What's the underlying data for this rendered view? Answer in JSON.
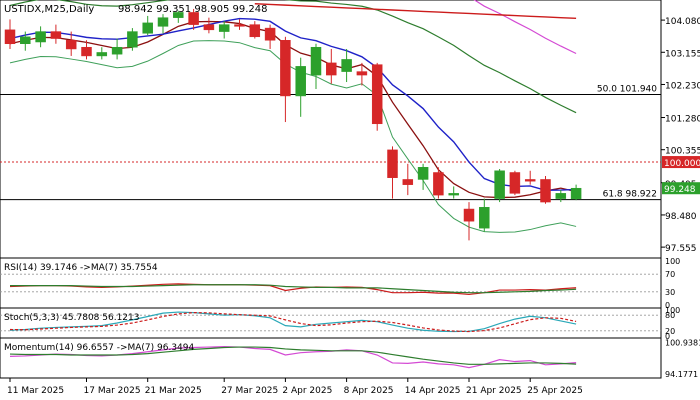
{
  "title": "USTIDX,M25,Daily",
  "ohlc_readout": "98.942 99.351 98.905 99.248",
  "colors": {
    "bull": "#2ca02c",
    "bear": "#d62728",
    "ma_blue": "#1f22c8",
    "ma_darkred": "#8b1010",
    "ma_green": "#2e7d2e",
    "ma_pink": "#d44ad4",
    "ma_red": "#cc1b1b",
    "bb_green": "#3fa05a",
    "price_label_bg": "#2ca02c",
    "resistance_label_bg": "#d62728"
  },
  "chart_data": [
    {
      "type": "candlestick",
      "title": "USTIDX,M25,Daily",
      "ylim": [
        97.3,
        104.6
      ],
      "x_tick_labels": [
        "11 Mar 2025",
        "17 Mar 2025",
        "21 Mar 2025",
        "27 Mar 2025",
        "2 Apr 2025",
        "8 Apr 2025",
        "14 Apr 2025",
        "21 Apr 2025",
        "25 Apr 2025"
      ],
      "x_tick_candle_index": [
        0,
        5,
        9,
        14,
        18,
        22,
        26,
        30,
        34
      ],
      "y_tick_labels": [
        "104.080",
        "103.155",
        "102.230",
        "101.280",
        "100.355",
        "99.405",
        "98.480",
        "97.555"
      ],
      "y_tick_values": [
        104.08,
        103.155,
        102.23,
        101.28,
        100.355,
        99.405,
        98.48,
        97.555
      ],
      "levels": [
        {
          "label": "50.0 101.940",
          "value": 101.94,
          "style": "solid"
        },
        {
          "label": "100.000",
          "value": 100.0,
          "style": "dotted"
        },
        {
          "label": "61.8 98.922",
          "value": 98.922,
          "style": "solid"
        }
      ],
      "last_price_label": "99.248",
      "last_price": 99.248,
      "candles": [
        {
          "o": 103.8,
          "h": 104.1,
          "l": 103.25,
          "c": 103.4
        },
        {
          "o": 103.4,
          "h": 103.75,
          "l": 103.2,
          "c": 103.6
        },
        {
          "o": 103.45,
          "h": 103.9,
          "l": 103.3,
          "c": 103.75
        },
        {
          "o": 103.75,
          "h": 103.95,
          "l": 103.4,
          "c": 103.55
        },
        {
          "o": 103.5,
          "h": 103.75,
          "l": 103.05,
          "c": 103.25
        },
        {
          "o": 103.3,
          "h": 103.5,
          "l": 102.95,
          "c": 103.05
        },
        {
          "o": 103.05,
          "h": 103.3,
          "l": 102.95,
          "c": 103.15
        },
        {
          "o": 103.1,
          "h": 103.55,
          "l": 102.95,
          "c": 103.3
        },
        {
          "o": 103.3,
          "h": 103.85,
          "l": 103.2,
          "c": 103.75
        },
        {
          "o": 103.7,
          "h": 104.2,
          "l": 103.65,
          "c": 104.0
        },
        {
          "o": 103.9,
          "h": 104.25,
          "l": 103.7,
          "c": 104.15
        },
        {
          "o": 104.15,
          "h": 104.35,
          "l": 104.0,
          "c": 104.3
        },
        {
          "o": 104.3,
          "h": 104.4,
          "l": 103.8,
          "c": 103.95
        },
        {
          "o": 103.95,
          "h": 104.15,
          "l": 103.7,
          "c": 103.8
        },
        {
          "o": 103.75,
          "h": 104.05,
          "l": 103.55,
          "c": 103.95
        },
        {
          "o": 103.95,
          "h": 104.1,
          "l": 103.8,
          "c": 103.9
        },
        {
          "o": 103.95,
          "h": 104.05,
          "l": 103.55,
          "c": 103.6
        },
        {
          "o": 103.85,
          "h": 103.95,
          "l": 103.25,
          "c": 103.5
        },
        {
          "o": 103.5,
          "h": 103.6,
          "l": 101.15,
          "c": 101.9
        },
        {
          "o": 101.9,
          "h": 103.0,
          "l": 101.3,
          "c": 102.75
        },
        {
          "o": 102.5,
          "h": 103.4,
          "l": 102.1,
          "c": 103.3
        },
        {
          "o": 102.85,
          "h": 103.25,
          "l": 102.25,
          "c": 102.5
        },
        {
          "o": 102.6,
          "h": 103.25,
          "l": 102.3,
          "c": 102.95
        },
        {
          "o": 102.6,
          "h": 102.85,
          "l": 102.2,
          "c": 102.5
        },
        {
          "o": 102.8,
          "h": 102.85,
          "l": 100.9,
          "c": 101.1
        },
        {
          "o": 100.35,
          "h": 100.45,
          "l": 98.95,
          "c": 99.55
        },
        {
          "o": 99.5,
          "h": 99.95,
          "l": 99.05,
          "c": 99.35
        },
        {
          "o": 99.5,
          "h": 99.95,
          "l": 99.2,
          "c": 99.85
        },
        {
          "o": 99.7,
          "h": 99.85,
          "l": 98.95,
          "c": 99.05
        },
        {
          "o": 99.05,
          "h": 99.3,
          "l": 98.95,
          "c": 99.1
        },
        {
          "o": 98.65,
          "h": 98.85,
          "l": 97.75,
          "c": 98.3
        },
        {
          "o": 98.1,
          "h": 98.95,
          "l": 98.0,
          "c": 98.7
        },
        {
          "o": 98.95,
          "h": 99.8,
          "l": 98.85,
          "c": 99.75
        },
        {
          "o": 99.7,
          "h": 99.75,
          "l": 99.05,
          "c": 99.1
        },
        {
          "o": 99.5,
          "h": 99.75,
          "l": 99.35,
          "c": 99.45
        },
        {
          "o": 99.5,
          "h": 99.6,
          "l": 98.8,
          "c": 98.85
        },
        {
          "o": 98.95,
          "h": 99.2,
          "l": 98.85,
          "c": 99.1
        },
        {
          "o": 98.942,
          "h": 99.351,
          "l": 98.905,
          "c": 99.248
        }
      ]
    },
    {
      "type": "line",
      "title": "RSI(14) 39.1746 ->MA(7) 35.7554",
      "ylim": [
        0,
        100
      ],
      "y_tick_labels": [
        "100",
        "70",
        "30",
        "0"
      ],
      "y_tick_values": [
        100,
        70,
        30,
        0
      ],
      "hlines": [
        70,
        30
      ],
      "series": [
        {
          "values": [
            42,
            43,
            44,
            44,
            43,
            41,
            40,
            41,
            43,
            45,
            47,
            48,
            47,
            46,
            46,
            46,
            45,
            44,
            33,
            38,
            41,
            40,
            41,
            40,
            35,
            28,
            28,
            29,
            27,
            27,
            24,
            28,
            34,
            34,
            35,
            34,
            37,
            39.17
          ]
        },
        {
          "values": [
            44,
            44,
            44,
            44,
            44,
            43,
            42,
            42,
            42,
            43,
            44,
            45,
            46,
            46,
            46,
            46,
            46,
            45,
            42,
            41,
            40,
            40,
            39,
            39,
            39,
            37,
            35,
            33,
            31,
            29,
            28,
            28,
            29,
            30,
            31,
            33,
            34,
            35.76
          ]
        }
      ]
    },
    {
      "type": "line",
      "title": "Stoch(5,3,3) 45.7808 56.1213",
      "ylim": [
        0,
        100
      ],
      "y_tick_labels": [
        "100",
        "80",
        "20",
        "0"
      ],
      "y_tick_values": [
        100,
        80,
        20,
        0
      ],
      "hlines": [
        80,
        20
      ],
      "series": [
        {
          "values": [
            22,
            25,
            30,
            33,
            35,
            37,
            40,
            50,
            62,
            75,
            88,
            92,
            90,
            85,
            80,
            82,
            78,
            70,
            40,
            35,
            45,
            50,
            55,
            60,
            55,
            42,
            30,
            22,
            18,
            17,
            18,
            28,
            48,
            65,
            76,
            70,
            58,
            45.78
          ]
        },
        {
          "values": [
            25,
            24,
            27,
            30,
            33,
            35,
            37,
            42,
            50,
            62,
            75,
            85,
            90,
            89,
            85,
            82,
            80,
            77,
            62,
            48,
            40,
            43,
            50,
            55,
            57,
            52,
            42,
            31,
            23,
            19,
            17,
            21,
            31,
            47,
            63,
            70,
            68,
            56.12
          ]
        }
      ]
    },
    {
      "type": "line",
      "title": "Momentum(14) 96.6557 ->MA(7) 96.3494",
      "y_tick_labels": [
        "100.9381",
        "94.1771"
      ],
      "y_tick_values": [
        100.9381,
        94.1771
      ],
      "ylim": [
        93.8,
        101.3
      ],
      "series": [
        {
          "values": [
            98.0,
            98.1,
            98.3,
            98.5,
            98.4,
            98.2,
            98.1,
            98.3,
            98.6,
            99.0,
            99.4,
            99.8,
            99.9,
            100.0,
            100.1,
            100.0,
            99.7,
            99.5,
            98.3,
            98.8,
            99.0,
            99.1,
            99.4,
            99.2,
            98.3,
            96.6,
            96.5,
            96.8,
            96.4,
            96.2,
            95.6,
            96.3,
            97.3,
            96.9,
            97.1,
            96.2,
            96.4,
            96.66
          ]
        },
        {
          "values": [
            98.5,
            98.4,
            98.4,
            98.4,
            98.3,
            98.3,
            98.3,
            98.3,
            98.4,
            98.6,
            98.9,
            99.2,
            99.5,
            99.7,
            99.9,
            100.0,
            100.0,
            99.9,
            99.6,
            99.4,
            99.3,
            99.2,
            99.2,
            99.2,
            98.9,
            98.4,
            97.9,
            97.4,
            97.0,
            96.6,
            96.3,
            96.3,
            96.4,
            96.5,
            96.6,
            96.6,
            96.5,
            96.35
          ]
        }
      ]
    }
  ]
}
